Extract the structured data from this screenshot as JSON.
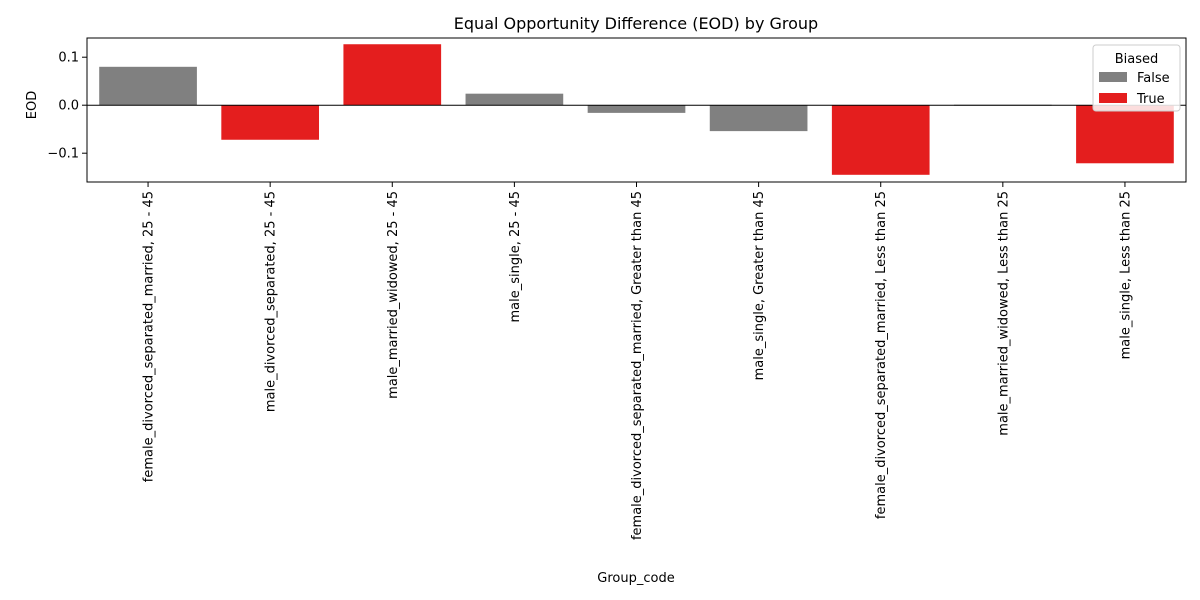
{
  "chart_data": {
    "type": "bar",
    "title": "Equal Opportunity Difference (EOD) by Group",
    "xlabel": "Group_code",
    "ylabel": "EOD",
    "ylim": [
      -0.16,
      0.14
    ],
    "yticks": [
      -0.1,
      0.0,
      0.1
    ],
    "ytick_labels": [
      "−0.1",
      "0.0",
      "0.1"
    ],
    "grid": false,
    "reference_line": 0.0,
    "categories": [
      "female_divorced_separated_married, 25 - 45",
      "male_divorced_separated, 25 - 45",
      "male_married_widowed, 25 - 45",
      "male_single, 25 - 45",
      "female_divorced_separated_married, Greater than 45",
      "male_single, Greater than 45",
      "female_divorced_separated_married, Less than 25",
      "male_married_widowed, Less than 25",
      "male_single, Less than 25"
    ],
    "values": [
      0.08,
      -0.072,
      0.127,
      0.024,
      -0.016,
      -0.054,
      -0.145,
      0.001,
      -0.121
    ],
    "biased": [
      "False",
      "True",
      "True",
      "False",
      "False",
      "False",
      "True",
      "False",
      "True"
    ],
    "legend": {
      "title": "Biased",
      "placement": "top-right",
      "entries": [
        {
          "label": "False",
          "color": "#808080"
        },
        {
          "label": "True",
          "color": "#e41e1e"
        }
      ]
    }
  }
}
